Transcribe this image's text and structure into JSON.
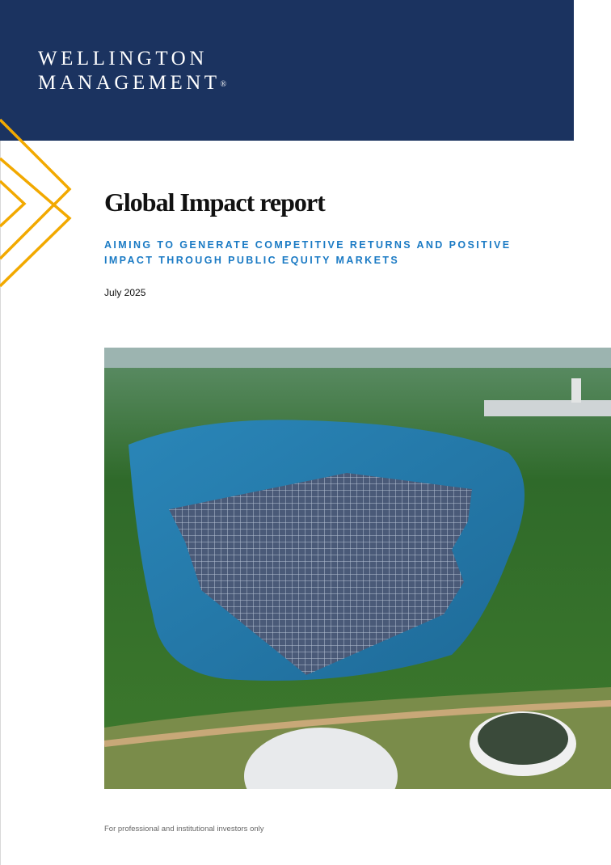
{
  "brand": {
    "line1": "WELLINGTON",
    "line2": "MANAGEMENT",
    "mark": "®",
    "band_color": "#1b3360",
    "accent_color": "#f2a900"
  },
  "title": "Global Impact report",
  "subtitle": {
    "line1": "AIMING TO GENERATE COMPETITIVE RETURNS AND POSITIVE",
    "line2": "IMPACT THROUGH PUBLIC EQUITY MARKETS",
    "color": "#1a7ac4"
  },
  "date": "July 2025",
  "footer": "For professional and institutional investors only"
}
